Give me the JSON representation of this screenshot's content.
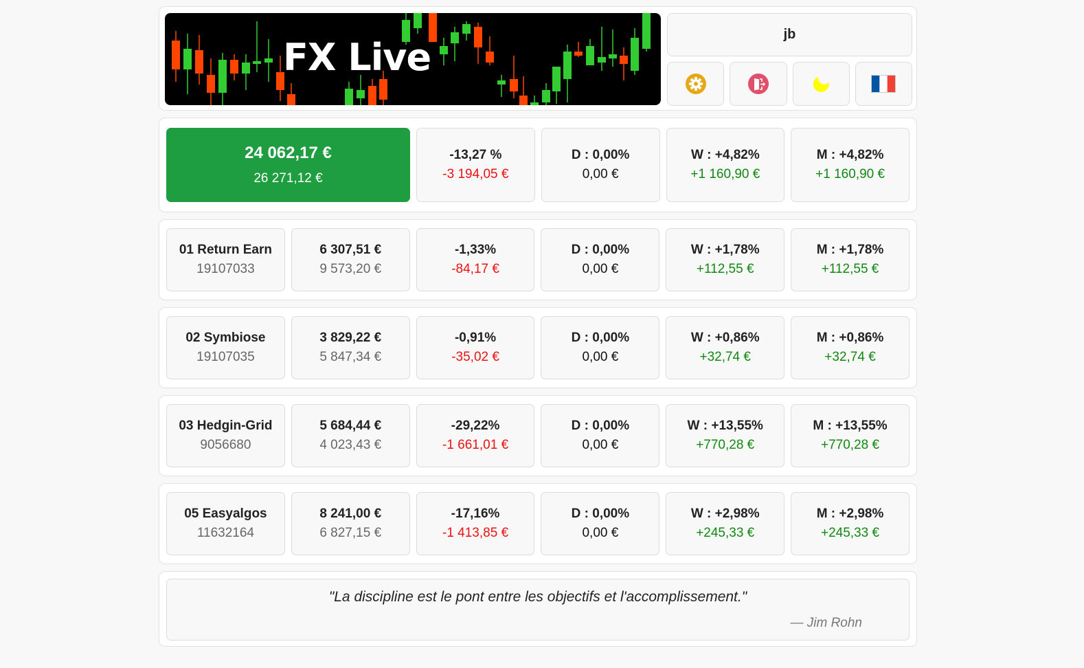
{
  "header": {
    "banner_title": "FX Live",
    "username": "jb",
    "icons": [
      {
        "name": "settings-gear-icon",
        "color": "#e6a817"
      },
      {
        "name": "logout-door-icon",
        "color": "#e0506a"
      },
      {
        "name": "dark-mode-moon-icon",
        "color": "#ffff00"
      },
      {
        "name": "language-flag-fr-icon",
        "colors": [
          "#0055a4",
          "#ffffff",
          "#ef4135"
        ]
      }
    ],
    "candle_colors": {
      "up": "#33cc33",
      "down": "#ff4500"
    }
  },
  "total": {
    "balance": "24 062,17 €",
    "deposit": "26 271,12 €",
    "perf_pct": "-13,27 %",
    "perf_amount": "-3 194,05 €",
    "day_pct": "D : 0,00%",
    "day_amount": "0,00 €",
    "week_pct": "W : +4,82%",
    "week_amount": "+1 160,90 €",
    "month_pct": "M : +4,82%",
    "month_amount": "+1 160,90 €"
  },
  "accounts": [
    {
      "name": "01 Return Earn",
      "number": "19107033",
      "balance": "6 307,51 €",
      "deposit": "9 573,20 €",
      "perf_pct": "-1,33%",
      "perf_amount": "-84,17 €",
      "day_pct": "D : 0,00%",
      "day_amount": "0,00 €",
      "week_pct": "W : +1,78%",
      "week_amount": "+112,55 €",
      "month_pct": "M : +1,78%",
      "month_amount": "+112,55 €"
    },
    {
      "name": "02 Symbiose",
      "number": "19107035",
      "balance": "3 829,22 €",
      "deposit": "5 847,34 €",
      "perf_pct": "-0,91%",
      "perf_amount": "-35,02 €",
      "day_pct": "D : 0,00%",
      "day_amount": "0,00 €",
      "week_pct": "W : +0,86%",
      "week_amount": "+32,74 €",
      "month_pct": "M : +0,86%",
      "month_amount": "+32,74 €"
    },
    {
      "name": "03 Hedgin-Grid",
      "number": "9056680",
      "balance": "5 684,44 €",
      "deposit": "4 023,43 €",
      "perf_pct": "-29,22%",
      "perf_amount": "-1 661,01 €",
      "day_pct": "D : 0,00%",
      "day_amount": "0,00 €",
      "week_pct": "W : +13,55%",
      "week_amount": "+770,28 €",
      "month_pct": "M : +13,55%",
      "month_amount": "+770,28 €"
    },
    {
      "name": "05 Easyalgos",
      "number": "11632164",
      "balance": "8 241,00 €",
      "deposit": "6 827,15 €",
      "perf_pct": "-17,16%",
      "perf_amount": "-1 413,85 €",
      "day_pct": "D : 0,00%",
      "day_amount": "0,00 €",
      "week_pct": "W : +2,98%",
      "week_amount": "+245,33 €",
      "month_pct": "M : +2,98%",
      "month_amount": "+245,33 €"
    }
  ],
  "quote": {
    "text": "\"La discipline est le pont entre les objectifs et l'accomplissement.\"",
    "author": "— Jim Rohn"
  }
}
